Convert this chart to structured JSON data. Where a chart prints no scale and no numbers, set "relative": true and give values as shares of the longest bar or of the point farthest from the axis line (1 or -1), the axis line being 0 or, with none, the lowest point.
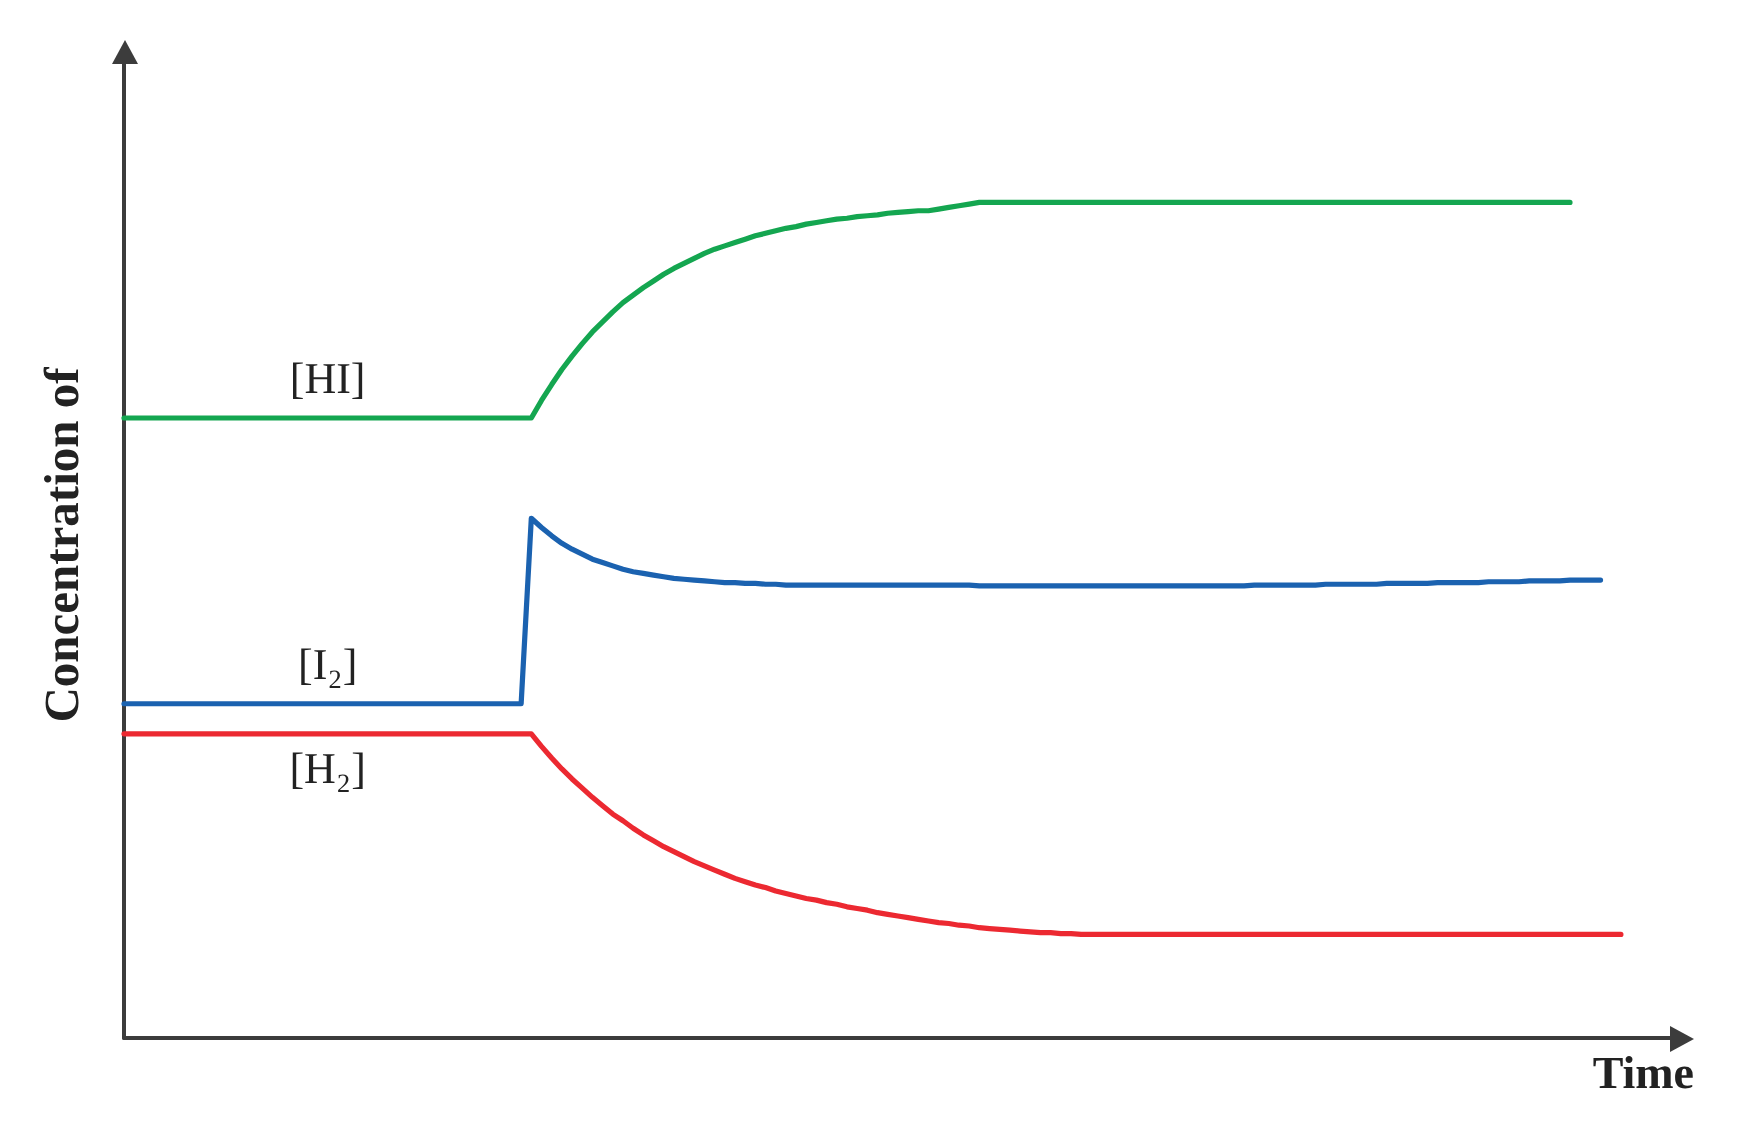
{
  "chart_data": {
    "type": "line",
    "xlabel": "Time",
    "ylabel": "Concentration of",
    "relative": true,
    "marker": "none",
    "categories": [
      null,
      null,
      null,
      null,
      null,
      null,
      null,
      null,
      null,
      null,
      null,
      null,
      null,
      null,
      null,
      null,
      null,
      null,
      null,
      null,
      null,
      null,
      null,
      null,
      null,
      null,
      null,
      null,
      null,
      null,
      null,
      null,
      null,
      null,
      null,
      null,
      null,
      null,
      null,
      null,
      null,
      null,
      null,
      null,
      null,
      null,
      null,
      null,
      null,
      null,
      null,
      null,
      null,
      null,
      null,
      null,
      null,
      null,
      null,
      null,
      null,
      null,
      null,
      null,
      null,
      null,
      null,
      null,
      null,
      null,
      null,
      null,
      null,
      null,
      null,
      null,
      null,
      null,
      null,
      null,
      null,
      null,
      null,
      null,
      null,
      null,
      null,
      null,
      null,
      null,
      null,
      null,
      null,
      null,
      null,
      null,
      null,
      null,
      null,
      null,
      null,
      null,
      null,
      null,
      null,
      null,
      null,
      null,
      null,
      null,
      null,
      null,
      null,
      null,
      null,
      null,
      null,
      null,
      null,
      null,
      null,
      null,
      null,
      null,
      null,
      null,
      null,
      null,
      null,
      null,
      null,
      null,
      null,
      null,
      null,
      null,
      null,
      null,
      null,
      null,
      null,
      null,
      null,
      null,
      null,
      null,
      null,
      null,
      null,
      null,
      null,
      null,
      null,
      null
    ],
    "series": [
      {
        "name": "[HI]",
        "color": "#14a650",
        "values": [
          0.742,
          0.742,
          0.742,
          0.742,
          0.742,
          0.742,
          0.742,
          0.742,
          0.742,
          0.742,
          0.742,
          0.742,
          0.742,
          0.742,
          0.742,
          0.742,
          0.742,
          0.742,
          0.742,
          0.742,
          0.742,
          0.742,
          0.742,
          0.742,
          0.742,
          0.742,
          0.742,
          0.742,
          0.742,
          0.742,
          0.742,
          0.742,
          0.742,
          0.742,
          0.742,
          0.742,
          0.742,
          0.742,
          0.742,
          0.742,
          0.742,
          0.763,
          0.782,
          0.8,
          0.816,
          0.831,
          0.845,
          0.857,
          0.869,
          0.88,
          0.889,
          0.898,
          0.906,
          0.914,
          0.921,
          0.927,
          0.933,
          0.939,
          0.944,
          0.948,
          0.952,
          0.956,
          0.96,
          0.963,
          0.966,
          0.969,
          0.971,
          0.974,
          0.976,
          0.978,
          0.98,
          0.981,
          0.983,
          0.984,
          0.985,
          0.987,
          0.988,
          0.989,
          0.99,
          0.99,
          0.992,
          0.994,
          0.996,
          0.998,
          1,
          1,
          1,
          1,
          1,
          1,
          1,
          1,
          1,
          1,
          1,
          1,
          1,
          1,
          1,
          1,
          1,
          1,
          1,
          1,
          1,
          1,
          1,
          1,
          1,
          1,
          1,
          1,
          1,
          1,
          1,
          1,
          1,
          1,
          1,
          1,
          1,
          1,
          1,
          1,
          1,
          1,
          1,
          1,
          1,
          1,
          1,
          1,
          1,
          1,
          1,
          1,
          1,
          1,
          1,
          1,
          1,
          1,
          1,
          null,
          null,
          null,
          null,
          null,
          null,
          null,
          null,
          null,
          null,
          null
        ]
      },
      {
        "name": "[I₂]",
        "color": "#1b62b0",
        "values": [
          0.4,
          0.4,
          0.4,
          0.4,
          0.4,
          0.4,
          0.4,
          0.4,
          0.4,
          0.4,
          0.4,
          0.4,
          0.4,
          0.4,
          0.4,
          0.4,
          0.4,
          0.4,
          0.4,
          0.4,
          0.4,
          0.4,
          0.4,
          0.4,
          0.4,
          0.4,
          0.4,
          0.4,
          0.4,
          0.4,
          0.4,
          0.4,
          0.4,
          0.4,
          0.4,
          0.4,
          0.4,
          0.4,
          0.4,
          0.4,
          0.622,
          0.611,
          0.601,
          0.592,
          0.585,
          0.579,
          0.573,
          0.569,
          0.565,
          0.561,
          0.558,
          0.556,
          0.554,
          0.552,
          0.55,
          0.549,
          0.548,
          0.547,
          0.546,
          0.545,
          0.545,
          0.544,
          0.544,
          0.543,
          0.543,
          0.542,
          0.542,
          0.542,
          0.542,
          0.542,
          0.542,
          0.542,
          0.542,
          0.542,
          0.542,
          0.542,
          0.542,
          0.542,
          0.542,
          0.542,
          0.542,
          0.542,
          0.542,
          0.542,
          0.541,
          0.541,
          0.541,
          0.541,
          0.541,
          0.541,
          0.541,
          0.541,
          0.541,
          0.541,
          0.541,
          0.541,
          0.541,
          0.541,
          0.541,
          0.541,
          0.541,
          0.541,
          0.541,
          0.541,
          0.541,
          0.541,
          0.541,
          0.541,
          0.541,
          0.541,
          0.541,
          0.542,
          0.542,
          0.542,
          0.542,
          0.542,
          0.542,
          0.542,
          0.543,
          0.543,
          0.543,
          0.543,
          0.543,
          0.543,
          0.544,
          0.544,
          0.544,
          0.544,
          0.544,
          0.545,
          0.545,
          0.545,
          0.545,
          0.545,
          0.546,
          0.546,
          0.546,
          0.546,
          0.547,
          0.547,
          0.547,
          0.547,
          0.548,
          0.548,
          0.548,
          0.548,
          null,
          null,
          null,
          null,
          null,
          null,
          null,
          null
        ]
      },
      {
        "name": "[H₂]",
        "color": "#ec2931",
        "values": [
          0.364,
          0.364,
          0.364,
          0.364,
          0.364,
          0.364,
          0.364,
          0.364,
          0.364,
          0.364,
          0.364,
          0.364,
          0.364,
          0.364,
          0.364,
          0.364,
          0.364,
          0.364,
          0.364,
          0.364,
          0.364,
          0.364,
          0.364,
          0.364,
          0.364,
          0.364,
          0.364,
          0.364,
          0.364,
          0.364,
          0.364,
          0.364,
          0.364,
          0.364,
          0.364,
          0.364,
          0.364,
          0.364,
          0.364,
          0.364,
          0.364,
          0.349,
          0.335,
          0.322,
          0.31,
          0.299,
          0.288,
          0.278,
          0.268,
          0.26,
          0.251,
          0.243,
          0.236,
          0.229,
          0.223,
          0.217,
          0.211,
          0.206,
          0.201,
          0.196,
          0.191,
          0.187,
          0.183,
          0.18,
          0.176,
          0.173,
          0.17,
          0.167,
          0.165,
          0.162,
          0.16,
          0.157,
          0.155,
          0.153,
          0.15,
          0.148,
          0.146,
          0.144,
          0.142,
          0.14,
          0.138,
          0.137,
          0.135,
          0.134,
          0.132,
          0.131,
          0.13,
          0.129,
          0.128,
          0.127,
          0.126,
          0.126,
          0.125,
          0.125,
          0.124,
          0.124,
          0.124,
          0.124,
          0.124,
          0.124,
          0.124,
          0.124,
          0.124,
          0.124,
          0.124,
          0.124,
          0.124,
          0.124,
          0.124,
          0.124,
          0.124,
          0.124,
          0.124,
          0.124,
          0.124,
          0.124,
          0.124,
          0.124,
          0.124,
          0.124,
          0.124,
          0.124,
          0.124,
          0.124,
          0.124,
          0.124,
          0.124,
          0.124,
          0.124,
          0.124,
          0.124,
          0.124,
          0.124,
          0.124,
          0.124,
          0.124,
          0.124,
          0.124,
          0.124,
          0.124,
          0.124,
          0.124,
          0.124,
          0.124,
          0.124,
          0.124,
          0.124,
          0.124,
          null,
          null,
          null,
          null,
          null,
          null
        ]
      }
    ]
  }
}
